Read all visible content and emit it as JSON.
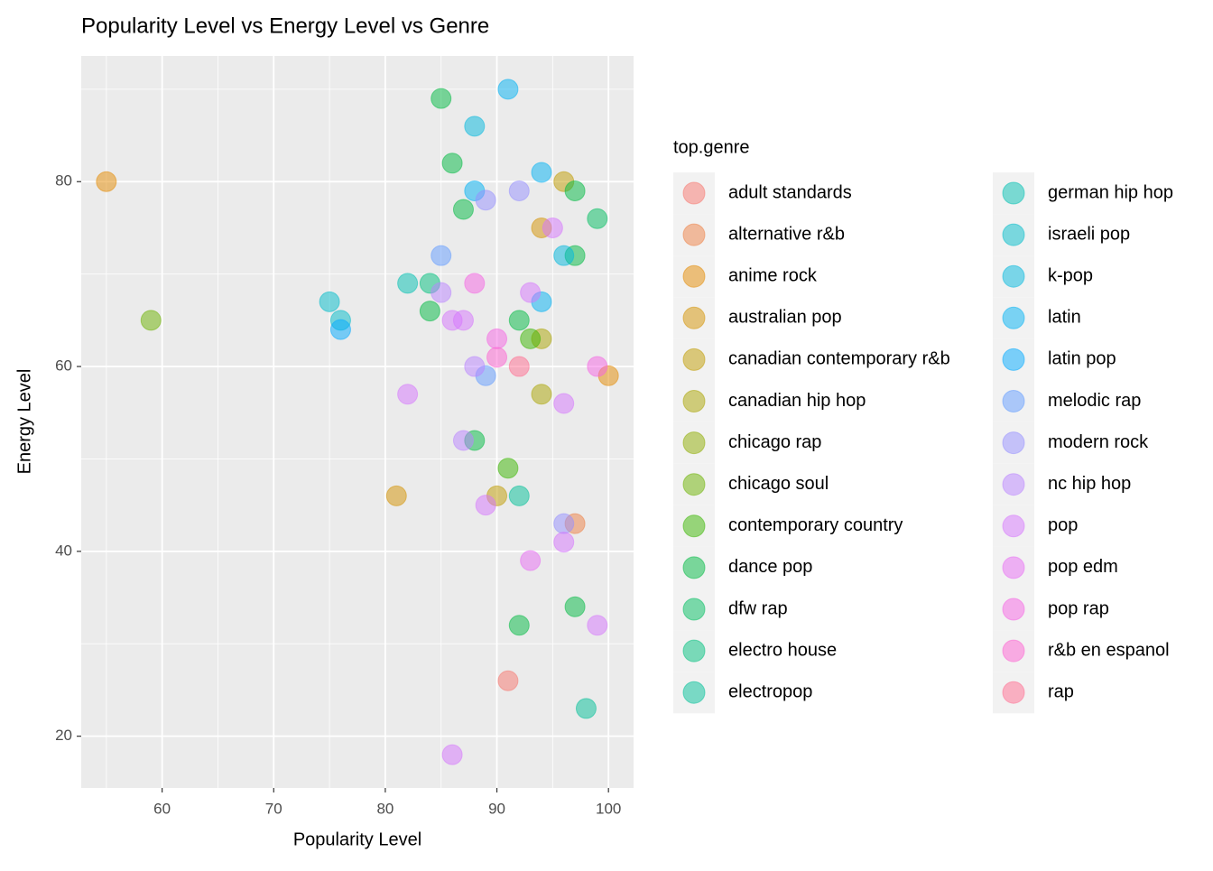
{
  "chart_data": {
    "type": "scatter",
    "title": "Popularity Level vs Energy Level vs Genre",
    "x_label": "Popularity Level",
    "y_label": "Energy Level",
    "legend_title": "top.genre",
    "xlim": [
      52.75,
      102.25
    ],
    "ylim": [
      14.4,
      93.6
    ],
    "xticks": [
      60,
      70,
      80,
      90,
      100
    ],
    "yticks": [
      20,
      40,
      60,
      80
    ],
    "grid": true,
    "legend": "right",
    "series": [
      {
        "name": "adult standards",
        "color": "#F8766D",
        "x": [
          91
        ],
        "y": [
          26
        ]
      },
      {
        "name": "alternative r&b",
        "color": "#EE8044",
        "x": [
          97
        ],
        "y": [
          43
        ]
      },
      {
        "name": "anime rock",
        "color": "#E38900",
        "x": [
          55,
          100
        ],
        "y": [
          80,
          59
        ]
      },
      {
        "name": "australian pop",
        "color": "#D39200",
        "x": [
          94,
          81
        ],
        "y": [
          75,
          46
        ]
      },
      {
        "name": "canadian contemporary r&b",
        "color": "#C09B00",
        "x": [
          96,
          90
        ],
        "y": [
          80,
          46
        ]
      },
      {
        "name": "canadian hip hop",
        "color": "#A9A400",
        "x": [
          94,
          94
        ],
        "y": [
          63,
          57
        ]
      },
      {
        "name": "chicago rap",
        "color": "#8EAB00",
        "x": [],
        "y": []
      },
      {
        "name": "chicago soul",
        "color": "#6BB100",
        "x": [
          59
        ],
        "y": [
          65
        ]
      },
      {
        "name": "contemporary country",
        "color": "#39B600",
        "x": [
          93,
          91
        ],
        "y": [
          63,
          49
        ]
      },
      {
        "name": "dance pop",
        "color": "#00BA42",
        "x": [
          85,
          86,
          97,
          87,
          97,
          84,
          92,
          88,
          97,
          92
        ],
        "y": [
          89,
          82,
          79,
          77,
          72,
          66,
          65,
          52,
          34,
          32
        ]
      },
      {
        "name": "dfw rap",
        "color": "#00BD5F",
        "x": [
          99
        ],
        "y": [
          76
        ]
      },
      {
        "name": "electro house",
        "color": "#00BF7D",
        "x": [
          84
        ],
        "y": [
          69
        ]
      },
      {
        "name": "electropop",
        "color": "#00C098",
        "x": [
          92,
          98
        ],
        "y": [
          46,
          23
        ]
      },
      {
        "name": "german hip hop",
        "color": "#00BFB2",
        "x": [
          82
        ],
        "y": [
          69
        ]
      },
      {
        "name": "israeli pop",
        "color": "#00BCC9",
        "x": [
          75,
          76
        ],
        "y": [
          67,
          65
        ]
      },
      {
        "name": "k-pop",
        "color": "#00B8DE",
        "x": [
          88,
          96
        ],
        "y": [
          86,
          72
        ]
      },
      {
        "name": "latin",
        "color": "#00B2F3",
        "x": [
          91,
          94,
          88,
          94
        ],
        "y": [
          90,
          81,
          79,
          67
        ]
      },
      {
        "name": "latin pop",
        "color": "#00A9FF",
        "x": [
          76
        ],
        "y": [
          64
        ]
      },
      {
        "name": "melodic rap",
        "color": "#619CFF",
        "x": [
          85,
          89
        ],
        "y": [
          72,
          59
        ]
      },
      {
        "name": "modern rock",
        "color": "#9590FF",
        "x": [
          89,
          92,
          96
        ],
        "y": [
          78,
          79,
          43
        ]
      },
      {
        "name": "nc hip hop",
        "color": "#B983FF",
        "x": [
          85,
          88,
          87
        ],
        "y": [
          68,
          60,
          52
        ]
      },
      {
        "name": "pop",
        "color": "#D575FE",
        "x": [
          95,
          93,
          86,
          87,
          82,
          96,
          89,
          96,
          99,
          86
        ],
        "y": [
          75,
          68,
          65,
          65,
          57,
          56,
          45,
          41,
          32,
          18
        ]
      },
      {
        "name": "pop edm",
        "color": "#E76BF3",
        "x": [
          93
        ],
        "y": [
          39
        ]
      },
      {
        "name": "pop rap",
        "color": "#F564E3",
        "x": [
          88,
          90,
          99
        ],
        "y": [
          69,
          63,
          60
        ]
      },
      {
        "name": "r&b en espanol",
        "color": "#FD61D1",
        "x": [
          90
        ],
        "y": [
          61
        ]
      },
      {
        "name": "rap",
        "color": "#FF6C90",
        "x": [
          92
        ],
        "y": [
          60
        ]
      }
    ]
  }
}
